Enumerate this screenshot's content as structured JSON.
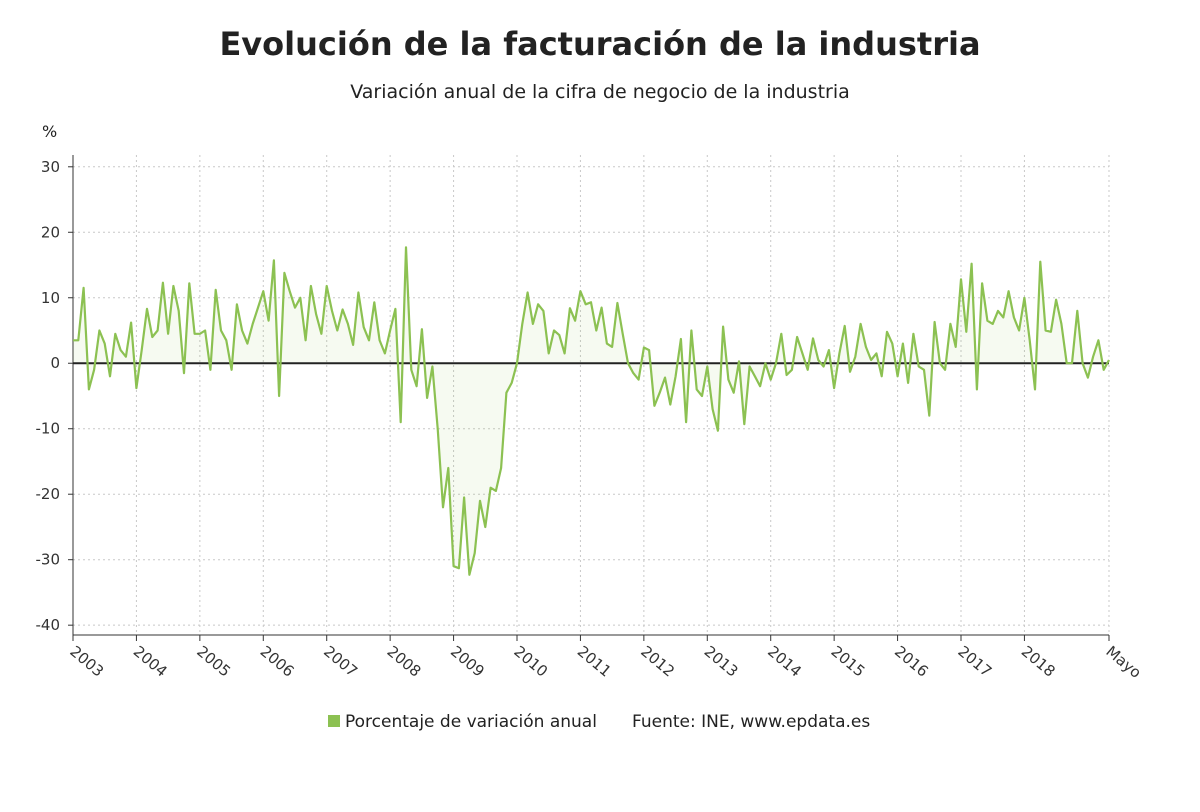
{
  "chart_data": {
    "type": "line",
    "title": "Evolución de la facturación de la industria",
    "subtitle": "Variación anual de la cifra de negocio de la industria",
    "y_label": "%",
    "source": "Fuente: INE, www.epdata.es",
    "categories": [
      "2003",
      null,
      null,
      null,
      null,
      null,
      null,
      null,
      null,
      null,
      null,
      null,
      "2004",
      null,
      null,
      null,
      null,
      null,
      null,
      null,
      null,
      null,
      null,
      null,
      "2005",
      null,
      null,
      null,
      null,
      null,
      null,
      null,
      null,
      null,
      null,
      null,
      "2006",
      null,
      null,
      null,
      null,
      null,
      null,
      null,
      null,
      null,
      null,
      null,
      "2007",
      null,
      null,
      null,
      null,
      null,
      null,
      null,
      null,
      null,
      null,
      null,
      "2008",
      null,
      null,
      null,
      null,
      null,
      null,
      null,
      null,
      null,
      null,
      null,
      "2009",
      null,
      null,
      null,
      null,
      null,
      null,
      null,
      null,
      null,
      null,
      null,
      "2010",
      null,
      null,
      null,
      null,
      null,
      null,
      null,
      null,
      null,
      null,
      null,
      "2011",
      null,
      null,
      null,
      null,
      null,
      null,
      null,
      null,
      null,
      null,
      null,
      "2012",
      null,
      null,
      null,
      null,
      null,
      null,
      null,
      null,
      null,
      null,
      null,
      "2013",
      null,
      null,
      null,
      null,
      null,
      null,
      null,
      null,
      null,
      null,
      null,
      "2014",
      null,
      null,
      null,
      null,
      null,
      null,
      null,
      null,
      null,
      null,
      null,
      "2015",
      null,
      null,
      null,
      null,
      null,
      null,
      null,
      null,
      null,
      null,
      null,
      "2016",
      null,
      null,
      null,
      null,
      null,
      null,
      null,
      null,
      null,
      null,
      null,
      "2017",
      null,
      null,
      null,
      null,
      null,
      null,
      null,
      null,
      null,
      null,
      null,
      "2018",
      null,
      null,
      null,
      null,
      null,
      null,
      null,
      null,
      null,
      null,
      null,
      null,
      null,
      null,
      null,
      "Mayo"
    ],
    "series": [
      {
        "name": "Porcentaje de variación anual",
        "color": "#8cc152",
        "values": [
          3.5,
          3.5,
          11.5,
          -4,
          -1,
          5,
          3,
          -2,
          4.5,
          2,
          1,
          6.2,
          -3.8,
          2,
          8.3,
          4,
          5,
          12.3,
          4.5,
          11.8,
          8,
          -1.5,
          12.2,
          4.5,
          4.5,
          5,
          -1,
          11.2,
          5,
          3.5,
          -1,
          9,
          5,
          3,
          6,
          8.5,
          11,
          6.5,
          15.7,
          -5,
          13.8,
          11,
          8.5,
          10,
          3.5,
          11.8,
          7.5,
          4.5,
          11.8,
          8,
          5,
          8.2,
          6,
          2.8,
          10.8,
          5.5,
          3.5,
          9.3,
          3.5,
          1.5,
          5,
          8.3,
          -9,
          17.7,
          -1,
          -3.5,
          5.2,
          -5.3,
          -0.5,
          -10,
          -22,
          -16,
          -31,
          -31.3,
          -20.5,
          -32.3,
          -29,
          -21,
          -25,
          -19,
          -19.5,
          -16,
          -4.5,
          -3,
          0,
          6,
          10.8,
          6,
          9,
          8,
          1.5,
          5,
          4.3,
          1.5,
          8.4,
          6.5,
          11,
          9,
          9.3,
          5,
          8.5,
          3,
          2.5,
          9.2,
          4.5,
          0,
          -1.5,
          -2.5,
          2.4,
          2,
          -6.5,
          -4.5,
          -2.2,
          -6.3,
          -2,
          3.7,
          -9,
          5,
          -4,
          -5,
          -0.5,
          -7,
          -10.3,
          5.6,
          -2.5,
          -4.5,
          0.3,
          -9.3,
          -0.5,
          -2,
          -3.5,
          0,
          -2.5,
          0,
          4.5,
          -1.8,
          -1,
          4,
          1.5,
          -1,
          3.8,
          0.5,
          -0.5,
          2,
          -3.8,
          1.5,
          5.7,
          -1.3,
          1,
          6,
          2.5,
          0.5,
          1.5,
          -2,
          4.8,
          3,
          -2,
          3,
          -3,
          4.5,
          -0.5,
          -1,
          -8,
          6.3,
          0,
          -1,
          6,
          2.5,
          12.8,
          4.8,
          15.2,
          -4,
          12.2,
          6.5,
          6,
          8,
          7,
          11,
          7,
          5,
          10,
          3.5,
          -4,
          15.5,
          5,
          4.8,
          9.7,
          6,
          0,
          0,
          8,
          0,
          -2.2,
          1,
          3.5,
          -1,
          0.5
        ]
      }
    ],
    "ylim": [
      -41.5,
      31.8
    ],
    "yticks": [
      -40,
      -30,
      -20,
      -10,
      0,
      10,
      20,
      30
    ],
    "grid": true
  }
}
